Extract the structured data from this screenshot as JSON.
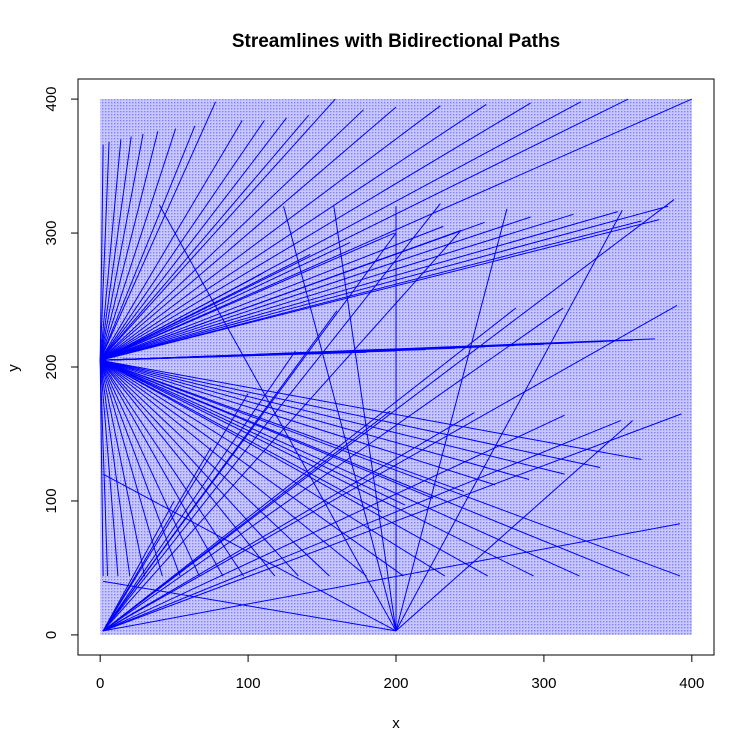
{
  "chart_data": {
    "type": "line",
    "title": "Streamlines with Bidirectional Paths",
    "xlabel": "x",
    "ylabel": "y",
    "xlim": [
      -15,
      415
    ],
    "ylim": [
      -15,
      415
    ],
    "x_ticks": [
      0,
      100,
      200,
      300,
      400
    ],
    "y_ticks": [
      0,
      100,
      200,
      300,
      400
    ],
    "x_tick_labels": [
      "0",
      "100",
      "200",
      "300",
      "400"
    ],
    "y_tick_labels": [
      "0",
      "100",
      "200",
      "300",
      "400"
    ],
    "grid": false,
    "legend": "none",
    "background_field": {
      "x_range": [
        0,
        400
      ],
      "y_range": [
        0,
        400
      ],
      "color": "#0000ff",
      "opacity": 0.28
    },
    "line_color": "#0000ff",
    "sources": [
      [
        0,
        205
      ],
      [
        200,
        3
      ],
      [
        2,
        3
      ]
    ],
    "series": [
      {
        "group": "fan-up-from-left-source",
        "segments": [
          [
            [
              0,
              205
            ],
            [
              2,
              366
            ]
          ],
          [
            [
              0,
              205
            ],
            [
              6,
              368
            ]
          ],
          [
            [
              0,
              205
            ],
            [
              14,
              370
            ]
          ],
          [
            [
              0,
              205
            ],
            [
              21,
              372
            ]
          ],
          [
            [
              0,
              205
            ],
            [
              29,
              374
            ]
          ],
          [
            [
              0,
              205
            ],
            [
              39,
              376
            ]
          ],
          [
            [
              0,
              205
            ],
            [
              51,
              378
            ]
          ],
          [
            [
              0,
              205
            ],
            [
              64,
              380
            ]
          ],
          [
            [
              0,
              205
            ],
            [
              78,
              398
            ]
          ],
          [
            [
              0,
              205
            ],
            [
              96,
              384
            ]
          ],
          [
            [
              0,
              205
            ],
            [
              111,
              384
            ]
          ],
          [
            [
              0,
              205
            ],
            [
              126,
              386
            ]
          ],
          [
            [
              0,
              205
            ],
            [
              141,
              388
            ]
          ],
          [
            [
              0,
              205
            ],
            [
              159,
              400
            ]
          ],
          [
            [
              0,
              205
            ],
            [
              178,
              392
            ]
          ],
          [
            [
              0,
              205
            ],
            [
              200,
              394
            ]
          ],
          [
            [
              0,
              205
            ],
            [
              230,
              395
            ]
          ],
          [
            [
              0,
              205
            ],
            [
              261,
              396
            ]
          ],
          [
            [
              0,
              205
            ],
            [
              291,
              397
            ]
          ],
          [
            [
              0,
              205
            ],
            [
              325,
              398
            ]
          ],
          [
            [
              0,
              205
            ],
            [
              357,
              400
            ]
          ],
          [
            [
              0,
              205
            ],
            [
              400,
              400
            ]
          ],
          [
            [
              0,
              205
            ],
            [
              232,
              305
            ]
          ],
          [
            [
              0,
              205
            ],
            [
              260,
              308
            ]
          ],
          [
            [
              0,
              205
            ],
            [
              291,
              312
            ]
          ],
          [
            [
              0,
              205
            ],
            [
              320,
              314
            ]
          ],
          [
            [
              0,
              205
            ],
            [
              350,
              316
            ]
          ],
          [
            [
              0,
              205
            ],
            [
              384,
              320
            ]
          ],
          [
            [
              0,
              205
            ],
            [
              378,
              310
            ]
          ],
          [
            [
              0,
              205
            ],
            [
              366,
              309
            ]
          ],
          [
            [
              0,
              205
            ],
            [
              244,
              302
            ]
          ],
          [
            [
              0,
              205
            ],
            [
              199,
              300
            ]
          ],
          [
            [
              0,
              205
            ],
            [
              169,
              293
            ]
          ],
          [
            [
              0,
              205
            ],
            [
              142,
              284
            ]
          ],
          [
            [
              0,
              205
            ],
            [
              110,
              270
            ]
          ]
        ]
      },
      {
        "group": "horizontal-band",
        "segments": [
          [
            [
              0,
              205
            ],
            [
              375,
              221
            ]
          ],
          [
            [
              0,
              205
            ],
            [
              360,
              220
            ]
          ],
          [
            [
              0,
              205
            ],
            [
              340,
              219
            ]
          ],
          [
            [
              0,
              205
            ],
            [
              320,
              218
            ]
          ],
          [
            [
              0,
              205
            ],
            [
              300,
              217
            ]
          ],
          [
            [
              0,
              205
            ],
            [
              280,
              216
            ]
          ],
          [
            [
              0,
              205
            ],
            [
              260,
              215
            ]
          ],
          [
            [
              0,
              205
            ],
            [
              240,
              214
            ]
          ],
          [
            [
              0,
              205
            ],
            [
              220,
              213
            ]
          ],
          [
            [
              0,
              205
            ],
            [
              200,
              212
            ]
          ],
          [
            [
              0,
              205
            ],
            [
              180,
              211
            ]
          ]
        ]
      },
      {
        "group": "fan-down-from-left-source",
        "segments": [
          [
            [
              0,
              205
            ],
            [
              366,
              131
            ]
          ],
          [
            [
              0,
              205
            ],
            [
              338,
              125
            ]
          ],
          [
            [
              0,
              205
            ],
            [
              314,
              120
            ]
          ],
          [
            [
              0,
              205
            ],
            [
              290,
              116
            ]
          ],
          [
            [
              0,
              205
            ],
            [
              267,
              112
            ]
          ],
          [
            [
              0,
              205
            ],
            [
              246,
              107
            ]
          ],
          [
            [
              0,
              205
            ],
            [
              225,
              102
            ]
          ],
          [
            [
              0,
              205
            ],
            [
              206,
              97
            ]
          ],
          [
            [
              0,
              205
            ],
            [
              190,
              92
            ]
          ],
          [
            [
              0,
              205
            ],
            [
              392,
              44
            ]
          ],
          [
            [
              0,
              205
            ],
            [
              358,
              44
            ]
          ],
          [
            [
              0,
              205
            ],
            [
              324,
              44
            ]
          ],
          [
            [
              0,
              205
            ],
            [
              293,
              44
            ]
          ],
          [
            [
              0,
              205
            ],
            [
              262,
              44
            ]
          ],
          [
            [
              0,
              205
            ],
            [
              233,
              44
            ]
          ],
          [
            [
              0,
              205
            ],
            [
              205,
              44
            ]
          ],
          [
            [
              0,
              205
            ],
            [
              180,
              44
            ]
          ],
          [
            [
              0,
              205
            ],
            [
              155,
              44
            ]
          ],
          [
            [
              0,
              205
            ],
            [
              134,
              44
            ]
          ],
          [
            [
              0,
              205
            ],
            [
              118,
              44
            ]
          ],
          [
            [
              0,
              205
            ],
            [
              97,
              44
            ]
          ],
          [
            [
              0,
              205
            ],
            [
              83,
              44
            ]
          ],
          [
            [
              0,
              205
            ],
            [
              67,
              44
            ]
          ],
          [
            [
              0,
              205
            ],
            [
              54,
              44
            ]
          ],
          [
            [
              0,
              205
            ],
            [
              42,
              44
            ]
          ],
          [
            [
              0,
              205
            ],
            [
              30,
              44
            ]
          ],
          [
            [
              0,
              205
            ],
            [
              20,
              44
            ]
          ],
          [
            [
              0,
              205
            ],
            [
              12,
              44
            ]
          ],
          [
            [
              0,
              205
            ],
            [
              5,
              44
            ]
          ],
          [
            [
              0,
              205
            ],
            [
              2,
              44
            ]
          ]
        ]
      },
      {
        "group": "fan-from-lower-left-source",
        "segments": [
          [
            [
              2,
              3
            ],
            [
              392,
              83
            ]
          ],
          [
            [
              2,
              3
            ],
            [
              393,
              165
            ]
          ],
          [
            [
              2,
              3
            ],
            [
              390,
              246
            ]
          ],
          [
            [
              2,
              3
            ],
            [
              388,
              325
            ]
          ],
          [
            [
              2,
              3
            ],
            [
              352,
              160
            ]
          ],
          [
            [
              2,
              3
            ],
            [
              314,
              164
            ]
          ],
          [
            [
              2,
              3
            ],
            [
              253,
              166
            ]
          ],
          [
            [
              2,
              3
            ],
            [
              196,
              167
            ]
          ],
          [
            [
              2,
              3
            ],
            [
              313,
              244
            ]
          ],
          [
            [
              2,
              3
            ],
            [
              281,
              244
            ]
          ],
          [
            [
              2,
              3
            ],
            [
              244,
              302
            ]
          ],
          [
            [
              2,
              3
            ],
            [
              230,
              322
            ]
          ],
          [
            [
              2,
              3
            ],
            [
              200,
              300
            ]
          ],
          [
            [
              2,
              3
            ],
            [
              160,
              242
            ]
          ],
          [
            [
              2,
              3
            ],
            [
              132,
              212
            ]
          ],
          [
            [
              2,
              3
            ],
            [
              100,
              180
            ]
          ],
          [
            [
              2,
              3
            ],
            [
              75,
              140
            ]
          ],
          [
            [
              2,
              3
            ],
            [
              50,
              100
            ]
          ]
        ]
      },
      {
        "group": "lines-through-bottom-source",
        "segments": [
          [
            [
              40,
              321
            ],
            [
              200,
              3
            ]
          ],
          [
            [
              124,
              320
            ],
            [
              200,
              3
            ]
          ],
          [
            [
              158,
              320
            ],
            [
              200,
              3
            ]
          ],
          [
            [
              200,
              320
            ],
            [
              200,
              3
            ]
          ],
          [
            [
              275,
              318
            ],
            [
              200,
              3
            ]
          ],
          [
            [
              353,
              317
            ],
            [
              200,
              3
            ]
          ],
          [
            [
              360,
              160
            ],
            [
              200,
              3
            ]
          ],
          [
            [
              200,
              3
            ],
            [
              2,
              120
            ]
          ],
          [
            [
              200,
              3
            ],
            [
              2,
              40
            ]
          ]
        ]
      }
    ]
  }
}
